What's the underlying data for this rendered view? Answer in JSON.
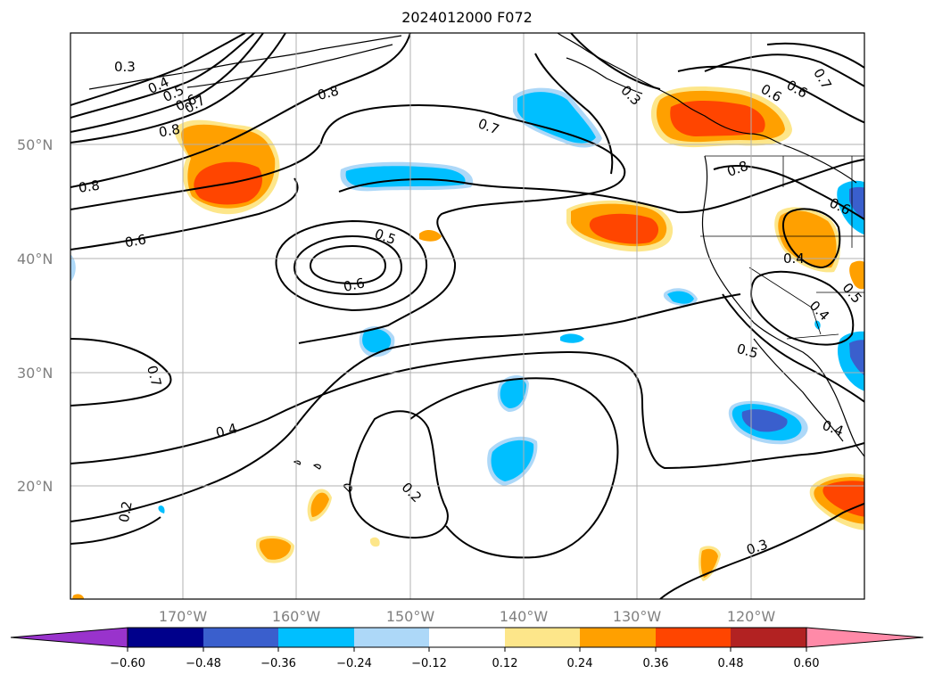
{
  "title": "2024012000 F072",
  "latitude_labels": [
    "50°N",
    "40°N",
    "30°N",
    "20°N"
  ],
  "longitude_labels": [
    "170°W",
    "160°W",
    "150°W",
    "140°W",
    "130°W",
    "120°W"
  ],
  "contour_labels": [
    "0.3",
    "0.4",
    "0.5",
    "0.6",
    "0.7",
    "0.8",
    "0.8",
    "0.8",
    "0.7",
    "0.6",
    "0.5",
    "0.6",
    "0.7",
    "0.4",
    "0.2",
    "0.2",
    "0.3",
    "0.6",
    "0.6",
    "0.7",
    "0.8",
    "0.6",
    "0.4",
    "0.5",
    "0.4",
    "0.5",
    "0.4",
    "0.3",
    "0.2"
  ],
  "colorbar": {
    "tick_labels": [
      "−0.60",
      "−0.48",
      "−0.36",
      "−0.24",
      "−0.12",
      "0.12",
      "0.24",
      "0.36",
      "0.48",
      "0.60"
    ],
    "colors": [
      "#9933cc",
      "#00008b",
      "#3a5fcd",
      "#00bfff",
      "#add8f8",
      "#ffffff",
      "#fde68a",
      "#ffa000",
      "#ff4500",
      "#b22222",
      "#ff8aa8"
    ]
  },
  "shading_colors": {
    "light_blue": "#add8f8",
    "blue": "#00bfff",
    "royal_blue": "#3a5fcd",
    "dark_blue": "#00008b",
    "yellow": "#fde68a",
    "orange": "#ffa000",
    "red_orange": "#ff4500"
  }
}
